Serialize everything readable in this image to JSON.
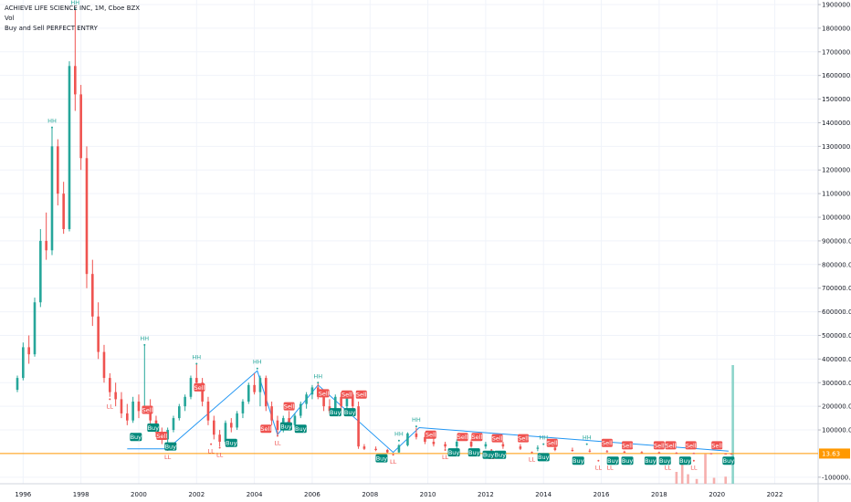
{
  "legend": {
    "title": "ACHIEVE LIFE SCIENCE INC, 1M, Cboe BZX",
    "vol": "Vol",
    "indicator": "Buy and Sell PERFECT ENTRY"
  },
  "colors": {
    "up": "#26a69a",
    "down": "#ef5350",
    "hh": "#26a69a",
    "ll": "#ef5350",
    "buy": "#00897b",
    "sell": "#ef5350",
    "zigzag": "#2196f3",
    "price_line": "#ff9800"
  },
  "chart_data": {
    "type": "candlestick",
    "title": "ACHIEVE LIFE SCIENCE INC, 1M, Cboe BZX",
    "ylim": [
      -120000,
      1900000
    ],
    "xlim": [
      1995.2,
      2023.5
    ],
    "y_ticks": [
      "1900000.00",
      "1800000.00",
      "1700000.00",
      "1600000.00",
      "1500000.00",
      "1400000.00",
      "1300000.00",
      "1200000.00",
      "1100000.00",
      "1000000.00",
      "900000.00",
      "800000.00",
      "700000.00",
      "600000.00",
      "500000.00",
      "400000.00",
      "300000.00",
      "200000.00",
      "100000.00",
      "-100000.00"
    ],
    "x_ticks": [
      "1996",
      "1998",
      "2000",
      "2002",
      "2004",
      "2006",
      "2008",
      "2010",
      "2012",
      "2014",
      "2016",
      "2018",
      "2020",
      "2022"
    ],
    "last_price_label": "13.63",
    "last_price": 13.63,
    "candles": [
      {
        "t": 1995.8,
        "o": 270000,
        "h": 330000,
        "l": 260000,
        "c": 320000
      },
      {
        "t": 1996.0,
        "o": 320000,
        "h": 470000,
        "l": 310000,
        "c": 450000
      },
      {
        "t": 1996.2,
        "o": 450000,
        "h": 500000,
        "l": 380000,
        "c": 420000
      },
      {
        "t": 1996.4,
        "o": 420000,
        "h": 660000,
        "l": 410000,
        "c": 640000
      },
      {
        "t": 1996.6,
        "o": 640000,
        "h": 950000,
        "l": 620000,
        "c": 900000
      },
      {
        "t": 1996.8,
        "o": 900000,
        "h": 1020000,
        "l": 820000,
        "c": 860000
      },
      {
        "t": 1997.0,
        "o": 860000,
        "h": 1380000,
        "l": 840000,
        "c": 1300000
      },
      {
        "t": 1997.2,
        "o": 1300000,
        "h": 1330000,
        "l": 1050000,
        "c": 1100000
      },
      {
        "t": 1997.4,
        "o": 1100000,
        "h": 1150000,
        "l": 930000,
        "c": 950000
      },
      {
        "t": 1997.6,
        "o": 950000,
        "h": 1660000,
        "l": 940000,
        "c": 1640000
      },
      {
        "t": 1997.8,
        "o": 1640000,
        "h": 1880000,
        "l": 1450000,
        "c": 1520000
      },
      {
        "t": 1998.0,
        "o": 1520000,
        "h": 1560000,
        "l": 1200000,
        "c": 1250000
      },
      {
        "t": 1998.2,
        "o": 1250000,
        "h": 1300000,
        "l": 700000,
        "c": 760000
      },
      {
        "t": 1998.4,
        "o": 760000,
        "h": 820000,
        "l": 540000,
        "c": 580000
      },
      {
        "t": 1998.6,
        "o": 580000,
        "h": 640000,
        "l": 400000,
        "c": 430000
      },
      {
        "t": 1998.8,
        "o": 430000,
        "h": 460000,
        "l": 300000,
        "c": 320000
      },
      {
        "t": 1999.0,
        "o": 320000,
        "h": 340000,
        "l": 240000,
        "c": 260000
      },
      {
        "t": 1999.2,
        "o": 260000,
        "h": 300000,
        "l": 200000,
        "c": 230000
      },
      {
        "t": 1999.4,
        "o": 230000,
        "h": 260000,
        "l": 150000,
        "c": 170000
      },
      {
        "t": 1999.6,
        "o": 170000,
        "h": 210000,
        "l": 120000,
        "c": 140000
      },
      {
        "t": 1999.8,
        "o": 140000,
        "h": 240000,
        "l": 130000,
        "c": 220000
      },
      {
        "t": 2000.0,
        "o": 220000,
        "h": 250000,
        "l": 150000,
        "c": 180000
      },
      {
        "t": 2000.2,
        "o": 180000,
        "h": 460000,
        "l": 170000,
        "c": 200000
      },
      {
        "t": 2000.4,
        "o": 200000,
        "h": 230000,
        "l": 120000,
        "c": 140000
      },
      {
        "t": 2000.6,
        "o": 140000,
        "h": 160000,
        "l": 70000,
        "c": 90000
      },
      {
        "t": 2000.8,
        "o": 90000,
        "h": 110000,
        "l": 40000,
        "c": 60000
      },
      {
        "t": 2001.0,
        "o": 60000,
        "h": 110000,
        "l": 20000,
        "c": 100000
      },
      {
        "t": 2001.2,
        "o": 100000,
        "h": 160000,
        "l": 90000,
        "c": 150000
      },
      {
        "t": 2001.4,
        "o": 150000,
        "h": 210000,
        "l": 140000,
        "c": 200000
      },
      {
        "t": 2001.6,
        "o": 200000,
        "h": 250000,
        "l": 180000,
        "c": 240000
      },
      {
        "t": 2001.8,
        "o": 240000,
        "h": 330000,
        "l": 230000,
        "c": 320000
      },
      {
        "t": 2002.0,
        "o": 320000,
        "h": 380000,
        "l": 280000,
        "c": 300000
      },
      {
        "t": 2002.2,
        "o": 300000,
        "h": 320000,
        "l": 200000,
        "c": 220000
      },
      {
        "t": 2002.4,
        "o": 220000,
        "h": 240000,
        "l": 120000,
        "c": 140000
      },
      {
        "t": 2002.6,
        "o": 140000,
        "h": 160000,
        "l": 60000,
        "c": 80000
      },
      {
        "t": 2002.8,
        "o": 80000,
        "h": 100000,
        "l": 30000,
        "c": 50000
      },
      {
        "t": 2003.0,
        "o": 50000,
        "h": 140000,
        "l": 40000,
        "c": 130000
      },
      {
        "t": 2003.2,
        "o": 130000,
        "h": 150000,
        "l": 90000,
        "c": 110000
      },
      {
        "t": 2003.4,
        "o": 110000,
        "h": 180000,
        "l": 100000,
        "c": 170000
      },
      {
        "t": 2003.6,
        "o": 170000,
        "h": 230000,
        "l": 150000,
        "c": 220000
      },
      {
        "t": 2003.8,
        "o": 220000,
        "h": 300000,
        "l": 210000,
        "c": 290000
      },
      {
        "t": 2004.0,
        "o": 290000,
        "h": 340000,
        "l": 250000,
        "c": 260000
      },
      {
        "t": 2004.2,
        "o": 260000,
        "h": 330000,
        "l": 200000,
        "c": 320000
      },
      {
        "t": 2004.4,
        "o": 320000,
        "h": 330000,
        "l": 180000,
        "c": 200000
      },
      {
        "t": 2004.6,
        "o": 200000,
        "h": 220000,
        "l": 120000,
        "c": 140000
      },
      {
        "t": 2004.8,
        "o": 140000,
        "h": 160000,
        "l": 80000,
        "c": 100000
      },
      {
        "t": 2005.0,
        "o": 100000,
        "h": 160000,
        "l": 90000,
        "c": 150000
      },
      {
        "t": 2005.2,
        "o": 150000,
        "h": 180000,
        "l": 110000,
        "c": 120000
      },
      {
        "t": 2005.4,
        "o": 120000,
        "h": 170000,
        "l": 110000,
        "c": 160000
      },
      {
        "t": 2005.6,
        "o": 160000,
        "h": 220000,
        "l": 150000,
        "c": 210000
      },
      {
        "t": 2005.8,
        "o": 210000,
        "h": 260000,
        "l": 190000,
        "c": 250000
      },
      {
        "t": 2006.0,
        "o": 250000,
        "h": 290000,
        "l": 230000,
        "c": 280000
      },
      {
        "t": 2006.2,
        "o": 280000,
        "h": 300000,
        "l": 230000,
        "c": 240000
      },
      {
        "t": 2006.4,
        "o": 240000,
        "h": 260000,
        "l": 180000,
        "c": 200000
      },
      {
        "t": 2006.6,
        "o": 200000,
        "h": 230000,
        "l": 170000,
        "c": 180000
      },
      {
        "t": 2006.8,
        "o": 180000,
        "h": 250000,
        "l": 170000,
        "c": 240000
      },
      {
        "t": 2007.0,
        "o": 240000,
        "h": 260000,
        "l": 180000,
        "c": 200000
      },
      {
        "t": 2007.2,
        "o": 200000,
        "h": 260000,
        "l": 190000,
        "c": 250000
      },
      {
        "t": 2007.4,
        "o": 250000,
        "h": 260000,
        "l": 190000,
        "c": 200000
      },
      {
        "t": 2007.6,
        "o": 200000,
        "h": 220000,
        "l": 20000,
        "c": 30000
      },
      {
        "t": 2007.8,
        "o": 30000,
        "h": 40000,
        "l": 15000,
        "c": 20000
      },
      {
        "t": 2008.2,
        "o": 20000,
        "h": 30000,
        "l": 10000,
        "c": 15000
      },
      {
        "t": 2008.6,
        "o": 15000,
        "h": 20000,
        "l": 2000,
        "c": 5000
      },
      {
        "t": 2009.0,
        "o": 5000,
        "h": 40000,
        "l": 3000,
        "c": 35000
      },
      {
        "t": 2009.3,
        "o": 35000,
        "h": 90000,
        "l": 30000,
        "c": 85000
      },
      {
        "t": 2009.6,
        "o": 85000,
        "h": 110000,
        "l": 60000,
        "c": 70000
      },
      {
        "t": 2009.9,
        "o": 70000,
        "h": 90000,
        "l": 40000,
        "c": 50000
      },
      {
        "t": 2010.2,
        "o": 50000,
        "h": 70000,
        "l": 30000,
        "c": 40000
      },
      {
        "t": 2010.6,
        "o": 40000,
        "h": 50000,
        "l": 20000,
        "c": 30000
      },
      {
        "t": 2011.0,
        "o": 30000,
        "h": 60000,
        "l": 20000,
        "c": 50000
      },
      {
        "t": 2011.5,
        "o": 50000,
        "h": 60000,
        "l": 25000,
        "c": 30000
      },
      {
        "t": 2012.0,
        "o": 30000,
        "h": 50000,
        "l": 20000,
        "c": 40000
      },
      {
        "t": 2012.6,
        "o": 40000,
        "h": 50000,
        "l": 20000,
        "c": 30000
      },
      {
        "t": 2013.2,
        "o": 30000,
        "h": 40000,
        "l": 15000,
        "c": 20000
      },
      {
        "t": 2013.8,
        "o": 20000,
        "h": 35000,
        "l": 10000,
        "c": 25000
      },
      {
        "t": 2014.4,
        "o": 25000,
        "h": 30000,
        "l": 10000,
        "c": 15000
      },
      {
        "t": 2015.0,
        "o": 15000,
        "h": 25000,
        "l": 8000,
        "c": 12000
      },
      {
        "t": 2015.6,
        "o": 12000,
        "h": 20000,
        "l": 5000,
        "c": 10000
      },
      {
        "t": 2016.2,
        "o": 10000,
        "h": 15000,
        "l": 4000,
        "c": 8000
      },
      {
        "t": 2016.8,
        "o": 8000,
        "h": 12000,
        "l": 3000,
        "c": 6000
      },
      {
        "t": 2017.4,
        "o": 6000,
        "h": 10000,
        "l": 2000,
        "c": 5000
      },
      {
        "t": 2018.0,
        "o": 5000,
        "h": 8000,
        "l": 1000,
        "c": 3000
      },
      {
        "t": 2018.6,
        "o": 3000,
        "h": 6000,
        "l": 500,
        "c": 2000
      },
      {
        "t": 2019.2,
        "o": 2000,
        "h": 4000,
        "l": 300,
        "c": 1000
      },
      {
        "t": 2019.8,
        "o": 1000,
        "h": 2000,
        "l": 100,
        "c": 200
      },
      {
        "t": 2020.3,
        "o": 200,
        "h": 500,
        "l": 10,
        "c": 50
      },
      {
        "t": 2020.5,
        "o": 50,
        "h": 100,
        "l": 10,
        "c": 13.63
      }
    ],
    "zigzag": [
      {
        "t": 1999.6,
        "v": 20000
      },
      {
        "t": 2001.0,
        "v": 20000
      },
      {
        "t": 2004.1,
        "v": 350000
      },
      {
        "t": 2004.8,
        "v": 80000
      },
      {
        "t": 2006.2,
        "v": 290000
      },
      {
        "t": 2008.8,
        "v": 5000
      },
      {
        "t": 2009.7,
        "v": 110000
      },
      {
        "t": 2015.6,
        "v": 55000
      },
      {
        "t": 2020.4,
        "v": 10000
      }
    ],
    "pivots": [
      {
        "label": "HH",
        "t": 1997.0,
        "v": 1380000,
        "kind": "hh"
      },
      {
        "label": "HH",
        "t": 1997.8,
        "v": 1880000,
        "kind": "hh"
      },
      {
        "label": "HH",
        "t": 2000.2,
        "v": 460000,
        "kind": "hh"
      },
      {
        "label": "LL",
        "t": 1999.0,
        "v": 230000,
        "kind": "ll"
      },
      {
        "label": "LL",
        "t": 2001.0,
        "v": 15000,
        "kind": "ll"
      },
      {
        "label": "HH",
        "t": 2002.0,
        "v": 380000,
        "kind": "hh"
      },
      {
        "label": "LL",
        "t": 2002.5,
        "v": 40000,
        "kind": "ll"
      },
      {
        "label": "LL",
        "t": 2002.8,
        "v": 25000,
        "kind": "ll"
      },
      {
        "label": "HH",
        "t": 2004.1,
        "v": 360000,
        "kind": "hh"
      },
      {
        "label": "LL",
        "t": 2004.8,
        "v": 75000,
        "kind": "ll"
      },
      {
        "label": "HH",
        "t": 2006.2,
        "v": 300000,
        "kind": "hh"
      },
      {
        "label": "LL",
        "t": 2008.8,
        "v": -5000,
        "kind": "ll"
      },
      {
        "label": "HH",
        "t": 2009.0,
        "v": 55000,
        "kind": "hh"
      },
      {
        "label": "HH",
        "t": 2009.6,
        "v": 115000,
        "kind": "hh"
      },
      {
        "label": "LL",
        "t": 2010.6,
        "v": 15000,
        "kind": "ll"
      },
      {
        "label": "LL",
        "t": 2012.2,
        "v": 15000,
        "kind": "ll"
      },
      {
        "label": "LL",
        "t": 2013.6,
        "v": 5000,
        "kind": "ll"
      },
      {
        "label": "HH",
        "t": 2014.0,
        "v": 40000,
        "kind": "hh"
      },
      {
        "label": "HH",
        "t": 2015.5,
        "v": 40000,
        "kind": "hh"
      },
      {
        "label": "LL",
        "t": 2015.9,
        "v": -30000,
        "kind": "ll"
      },
      {
        "label": "LL",
        "t": 2016.3,
        "v": -30000,
        "kind": "ll"
      },
      {
        "label": "LL",
        "t": 2018.3,
        "v": -30000,
        "kind": "ll"
      },
      {
        "label": "LL",
        "t": 2019.2,
        "v": -30000,
        "kind": "ll"
      }
    ],
    "markers": [
      {
        "label": "Sell",
        "t": 2000.3,
        "v": 185000,
        "kind": "sell"
      },
      {
        "label": "Sell",
        "t": 2000.8,
        "v": 75000,
        "kind": "sell"
      },
      {
        "label": "Buy",
        "t": 2000.5,
        "v": 110000,
        "kind": "buy"
      },
      {
        "label": "Buy",
        "t": 1999.9,
        "v": 70000,
        "kind": "buy"
      },
      {
        "label": "Buy",
        "t": 2001.1,
        "v": 30000,
        "kind": "buy"
      },
      {
        "label": "Sell",
        "t": 2002.1,
        "v": 280000,
        "kind": "sell"
      },
      {
        "label": "Buy",
        "t": 2003.2,
        "v": 45000,
        "kind": "buy"
      },
      {
        "label": "Sell",
        "t": 2005.2,
        "v": 200000,
        "kind": "sell"
      },
      {
        "label": "Sell",
        "t": 2004.4,
        "v": 105000,
        "kind": "sell"
      },
      {
        "label": "Buy",
        "t": 2005.1,
        "v": 115000,
        "kind": "buy"
      },
      {
        "label": "Buy",
        "t": 2005.6,
        "v": 105000,
        "kind": "buy"
      },
      {
        "label": "Sell",
        "t": 2006.4,
        "v": 255000,
        "kind": "sell"
      },
      {
        "label": "Buy",
        "t": 2006.8,
        "v": 175000,
        "kind": "buy"
      },
      {
        "label": "Sell",
        "t": 2007.2,
        "v": 250000,
        "kind": "sell"
      },
      {
        "label": "Sell",
        "t": 2007.7,
        "v": 250000,
        "kind": "sell"
      },
      {
        "label": "Buy",
        "t": 2007.3,
        "v": 175000,
        "kind": "buy"
      },
      {
        "label": "Buy",
        "t": 2008.4,
        "v": -20000,
        "kind": "buy"
      },
      {
        "label": "Sell",
        "t": 2010.1,
        "v": 80000,
        "kind": "sell"
      },
      {
        "label": "Buy",
        "t": 2010.9,
        "v": 5000,
        "kind": "buy"
      },
      {
        "label": "Sell",
        "t": 2011.2,
        "v": 70000,
        "kind": "sell"
      },
      {
        "label": "Sell",
        "t": 2011.7,
        "v": 70000,
        "kind": "sell"
      },
      {
        "label": "Buy",
        "t": 2011.6,
        "v": 5000,
        "kind": "buy"
      },
      {
        "label": "Buy",
        "t": 2012.1,
        "v": -5000,
        "kind": "buy"
      },
      {
        "label": "Sell",
        "t": 2012.4,
        "v": 65000,
        "kind": "sell"
      },
      {
        "label": "Buy",
        "t": 2012.5,
        "v": -5000,
        "kind": "buy"
      },
      {
        "label": "Sell",
        "t": 2013.3,
        "v": 65000,
        "kind": "sell"
      },
      {
        "label": "Buy",
        "t": 2014.0,
        "v": -15000,
        "kind": "buy"
      },
      {
        "label": "Sell",
        "t": 2014.3,
        "v": 45000,
        "kind": "sell"
      },
      {
        "label": "Buy",
        "t": 2015.2,
        "v": -30000,
        "kind": "buy"
      },
      {
        "label": "Sell",
        "t": 2016.2,
        "v": 45000,
        "kind": "sell"
      },
      {
        "label": "Buy",
        "t": 2016.4,
        "v": -30000,
        "kind": "buy"
      },
      {
        "label": "Buy",
        "t": 2016.9,
        "v": -30000,
        "kind": "buy"
      },
      {
        "label": "Sell",
        "t": 2016.9,
        "v": 35000,
        "kind": "sell"
      },
      {
        "label": "Buy",
        "t": 2017.7,
        "v": -30000,
        "kind": "buy"
      },
      {
        "label": "Sell",
        "t": 2018.0,
        "v": 35000,
        "kind": "sell"
      },
      {
        "label": "Sell",
        "t": 2018.4,
        "v": 35000,
        "kind": "sell"
      },
      {
        "label": "Buy",
        "t": 2018.2,
        "v": -30000,
        "kind": "buy"
      },
      {
        "label": "Buy",
        "t": 2018.9,
        "v": -30000,
        "kind": "buy"
      },
      {
        "label": "Sell",
        "t": 2019.1,
        "v": 35000,
        "kind": "sell"
      },
      {
        "label": "Sell",
        "t": 2020.0,
        "v": 35000,
        "kind": "sell"
      },
      {
        "label": "Buy",
        "t": 2020.4,
        "v": -30000,
        "kind": "buy"
      }
    ],
    "volume": [
      {
        "t": 2018.6,
        "v": 0.1
      },
      {
        "t": 2018.8,
        "v": 0.2
      },
      {
        "t": 2019.0,
        "v": 0.08
      },
      {
        "t": 2019.3,
        "v": 0.04
      },
      {
        "t": 2019.6,
        "v": 0.25
      },
      {
        "t": 2019.9,
        "v": 0.05
      },
      {
        "t": 2020.3,
        "v": 0.06
      },
      {
        "t": 2020.55,
        "v": 1.0
      }
    ]
  }
}
